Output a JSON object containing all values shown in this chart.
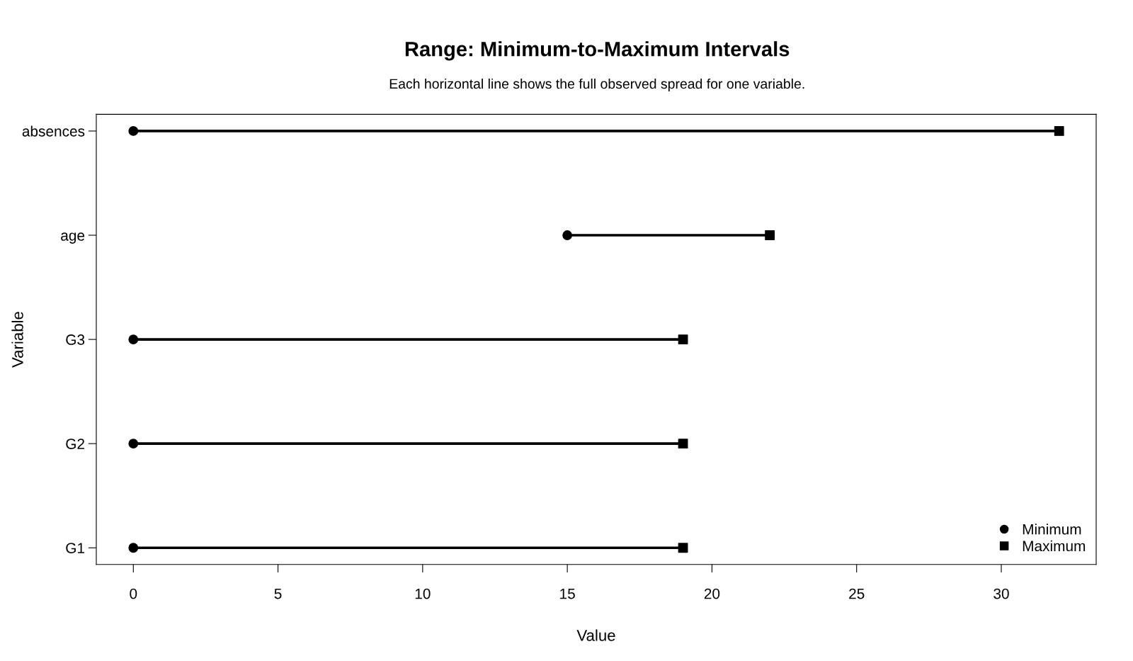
{
  "chart_data": {
    "type": "bar",
    "orientation": "horizontal",
    "title": "Range: Minimum-to-Maximum Intervals",
    "subtitle": "Each horizontal line shows the full observed spread for one variable.",
    "xlabel": "Value",
    "ylabel": "Variable",
    "categories": [
      "absences",
      "age",
      "G3",
      "G2",
      "G1"
    ],
    "series": [
      {
        "color": "#000000",
        "base": [
          0,
          15,
          0,
          0,
          0
        ],
        "values": [
          32,
          7,
          19,
          19,
          19
        ]
      },
      {
        "type": "scatter",
        "name": "Minimum",
        "color": "#000000",
        "marker": "circle",
        "values": [
          0,
          15,
          0,
          0,
          0
        ]
      },
      {
        "type": "scatter",
        "name": "Maximum",
        "color": "#000000",
        "marker": "square",
        "values": [
          32,
          22,
          19,
          19,
          19
        ]
      }
    ],
    "xlim": [
      -1.28,
      33.28
    ],
    "xticks": [
      0,
      5,
      10,
      15,
      20,
      25,
      30
    ],
    "grid": false,
    "legend": "bottom right"
  }
}
